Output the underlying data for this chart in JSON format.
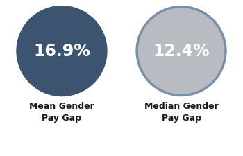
{
  "circle1": {
    "value": "16.9%",
    "label": "Mean Gender\nPay Gap",
    "fill_color": "#3d5470",
    "edge_color": "#3d5470",
    "text_color": "#ffffff"
  },
  "circle2": {
    "value": "12.4%",
    "label": "Median Gender\nPay Gap",
    "fill_color": "#b8bcc2",
    "edge_color": "#7a8fa8",
    "text_color": "#ffffff"
  },
  "background_color": "#ffffff",
  "label_color": "#1a1a1a",
  "value_fontsize": 17,
  "label_fontsize": 9.0
}
